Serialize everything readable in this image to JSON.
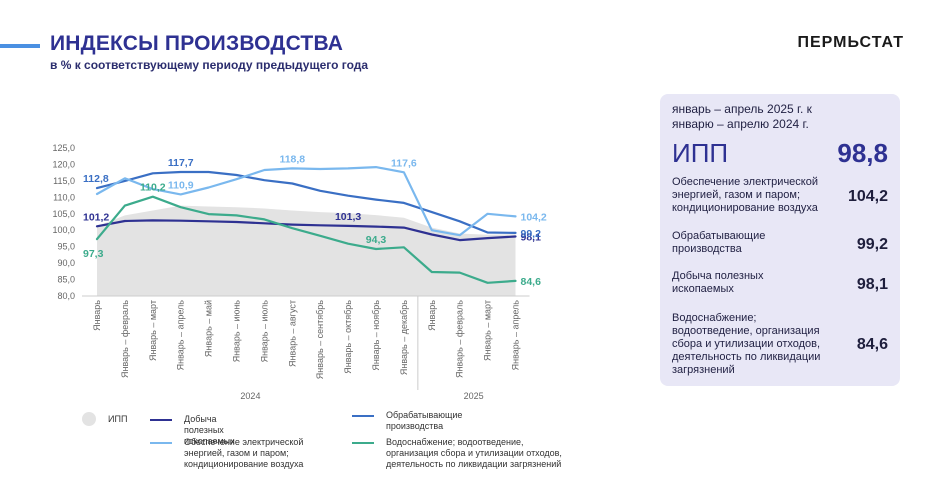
{
  "header": {
    "title": "ИНДЕКСЫ ПРОИЗВОДСТВА",
    "subtitle": "в % к соответствующему периоду предыдущего года",
    "brand": "ПЕРМЬСТАТ"
  },
  "chart_data": {
    "type": "line",
    "title": "ИНДЕКСЫ ПРОИЗВОДСТВА",
    "ylabel": "в % к соответствующему периоду предыдущего года",
    "ylim": [
      80,
      125
    ],
    "yticks": [
      "125,0",
      "120,0",
      "115,0",
      "110,0",
      "105,0",
      "100,0",
      "95,0",
      "90,0",
      "85,0",
      "80,0"
    ],
    "categories": [
      "Январь",
      "Январь – февраль",
      "Январь – март",
      "Январь – апрель",
      "Январь – май",
      "Январь – июнь",
      "Январь – июль",
      "Январь – август",
      "Январь – сентябрь",
      "Январь – октябрь",
      "Январь – ноябрь",
      "Январь – декабрь",
      "Январь",
      "Январь – февраль",
      "Январь – март",
      "Январь – апрель"
    ],
    "year_groups": [
      {
        "label": "2024",
        "start": 0,
        "end": 11
      },
      {
        "label": "2025",
        "start": 12,
        "end": 15
      }
    ],
    "series": [
      {
        "name": "ИПП",
        "type": "area",
        "color": "#e3e3e3",
        "values": [
          101.2,
          104.5,
          106.0,
          107.5,
          107.2,
          107.0,
          106.6,
          106.0,
          105.5,
          105.2,
          104.6,
          103.8,
          100.8,
          99.0,
          98.6,
          98.8
        ]
      },
      {
        "name": "Добыча полезных ископаемых",
        "color": "#2e3192",
        "values": [
          101.2,
          102.8,
          103.0,
          102.9,
          102.7,
          102.5,
          102.1,
          101.7,
          101.5,
          101.3,
          101.1,
          100.8,
          98.7,
          97.0,
          97.6,
          98.1
        ]
      },
      {
        "name": "Обрабатывающие производства",
        "color": "#3a6fc4",
        "values": [
          112.8,
          115.0,
          117.3,
          117.7,
          117.7,
          116.8,
          115.2,
          114.2,
          112.0,
          110.5,
          109.3,
          108.3,
          105.5,
          102.7,
          99.3,
          99.2
        ]
      },
      {
        "name": "Обеспечение электрической энергией, газом и паром; кондиционирование воздуха",
        "color": "#7ab8ee",
        "values": [
          111.0,
          115.8,
          112.5,
          110.9,
          113.0,
          115.5,
          118.3,
          118.8,
          118.6,
          118.8,
          119.2,
          117.6,
          100.0,
          98.5,
          105.0,
          104.2
        ]
      },
      {
        "name": "Водоснабжение; водоотведение, организация сбора и утилизации отходов, деятельность по ликвидации загрязнений",
        "color": "#3cab8c",
        "values": [
          97.3,
          107.5,
          110.2,
          107.0,
          104.9,
          104.5,
          103.3,
          100.6,
          98.3,
          95.9,
          94.3,
          94.8,
          87.3,
          87.1,
          84.0,
          84.6
        ]
      }
    ],
    "data_labels": [
      {
        "series": 1,
        "index": 0,
        "text": "101,2"
      },
      {
        "series": 1,
        "index": 9,
        "text": "101,3"
      },
      {
        "series": 1,
        "index": 15,
        "text": "98,1"
      },
      {
        "series": 2,
        "index": 0,
        "text": "112,8"
      },
      {
        "series": 2,
        "index": 3,
        "text": "117,7"
      },
      {
        "series": 2,
        "index": 15,
        "text": "99,2"
      },
      {
        "series": 3,
        "index": 3,
        "text": "110,9"
      },
      {
        "series": 3,
        "index": 7,
        "text": "118,8"
      },
      {
        "series": 3,
        "index": 11,
        "text": "117,6"
      },
      {
        "series": 3,
        "index": 15,
        "text": "104,2"
      },
      {
        "series": 4,
        "index": 0,
        "text": "97,3"
      },
      {
        "series": 4,
        "index": 2,
        "text": "110,2"
      },
      {
        "series": 4,
        "index": 10,
        "text": "94,3"
      },
      {
        "series": 4,
        "index": 15,
        "text": "84,6"
      }
    ]
  },
  "legend": {
    "ipp": "ИПП",
    "mining": "Добыча полезных ископаемых",
    "manufacturing": "Обрабатывающие производства",
    "energy": "Обеспечение электрической энергией, газом и паром; кондиционирование воздуха",
    "water": "Водоснабжение; водоотведение, организация сбора и утилизации отходов, деятельность по ликвидации загрязнений"
  },
  "panel": {
    "heading": "январь – апрель 2025 г. к январю – апрелю 2024 г.",
    "ipp_label": "ИПП",
    "ipp_value": "98,8",
    "rows": [
      {
        "label": "Обеспечение электрической энергией, газом и паром; кондиционирование воздуха",
        "value": "104,2"
      },
      {
        "label": "Обрабатывающие производства",
        "value": "99,2"
      },
      {
        "label": "Добыча полезных ископаемых",
        "value": "98,1"
      },
      {
        "label": "Водоснабжение; водоотведение, организация сбора и утилизации отходов, деятельность по ликвидации загрязнений",
        "value": "84,6"
      }
    ]
  }
}
